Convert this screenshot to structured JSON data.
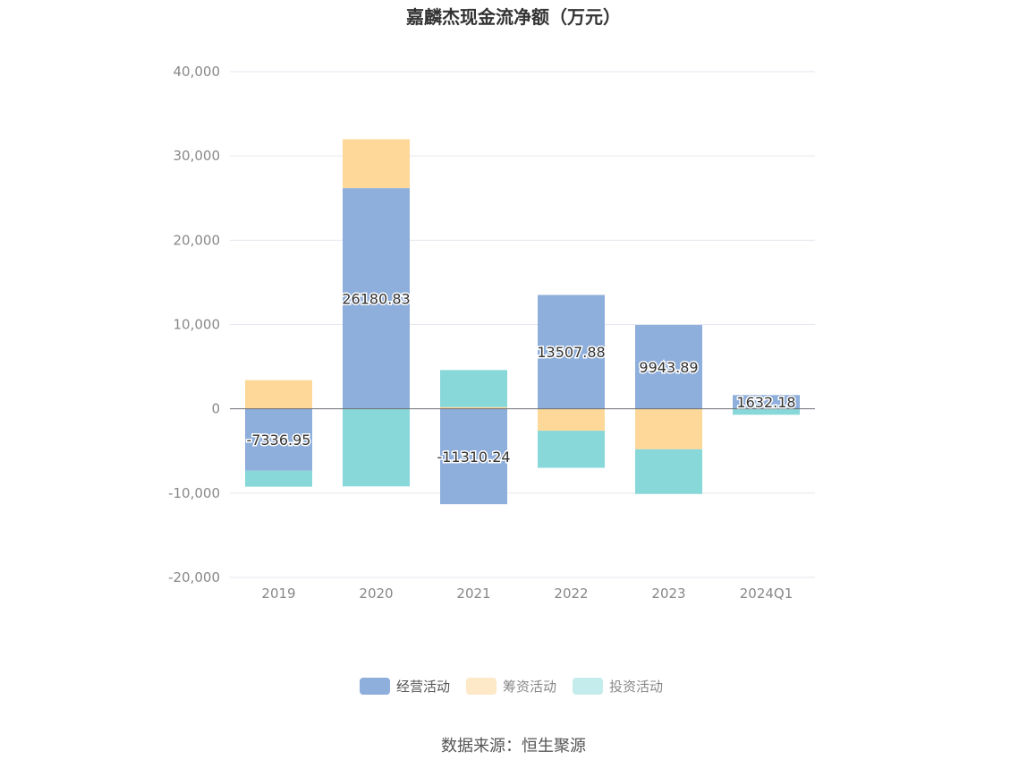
{
  "chart_data": {
    "type": "bar",
    "stacked": true,
    "title": "嘉麟杰现金流净额（万元）",
    "categories": [
      "2019",
      "2020",
      "2021",
      "2022",
      "2023",
      "2024Q1"
    ],
    "ylim": [
      -20000,
      40000
    ],
    "yticks": [
      40000,
      30000,
      20000,
      10000,
      0,
      -10000,
      -20000
    ],
    "ytick_labels": [
      "40,000",
      "30,000",
      "20,000",
      "10,000",
      "0",
      "-10,000",
      "-20,000"
    ],
    "grid": true,
    "legend_position": "bottom-center",
    "series": [
      {
        "name": "经营活动",
        "color": "#8eaedb",
        "values": [
          -7336.95,
          26180.83,
          -11310.24,
          13507.88,
          9943.89,
          1632.18
        ],
        "labels": [
          "-7336.95",
          "26180.83",
          "-11310.24",
          "13507.88",
          "9943.89",
          "1632.18"
        ]
      },
      {
        "name": "筹资活动",
        "color": "#fdd899",
        "values": [
          3400,
          5800,
          200,
          -2600,
          -4800,
          0
        ]
      },
      {
        "name": "投资活动",
        "color": "#88d7d9",
        "values": [
          -1900,
          -9200,
          4400,
          -4400,
          -5300,
          -700
        ]
      }
    ],
    "legend_swatch_colors": [
      "#8eaedb",
      "#fde8c8",
      "#c5ecec"
    ],
    "source": "数据来源：恒生聚源"
  }
}
